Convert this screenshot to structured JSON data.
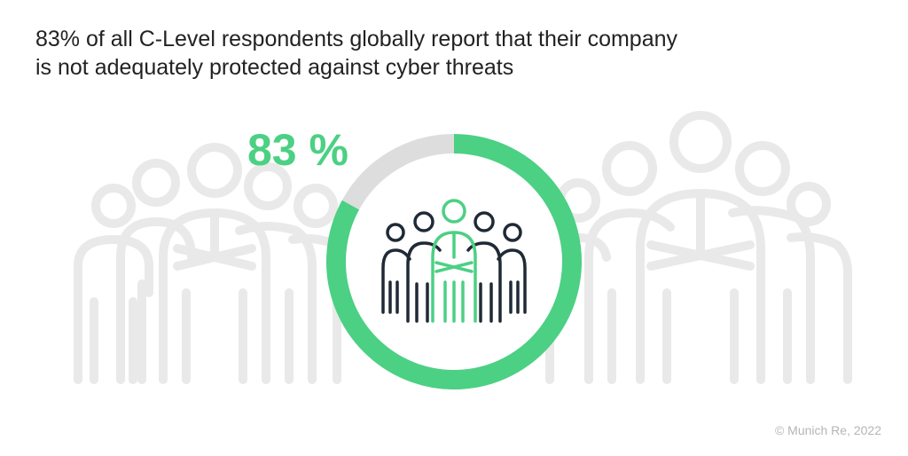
{
  "title_lines": [
    "83% of all C-Level respondents globally report that their company",
    "is not adequately protected against cyber threats"
  ],
  "chart_data": {
    "type": "pie",
    "variant": "donut",
    "values": [
      83,
      17
    ],
    "value_label": "83 %",
    "colors": [
      "#4cd084",
      "#dddddd"
    ]
  },
  "credit": "© Munich Re, 2022",
  "colors": {
    "accent": "#4cd084",
    "remainder": "#dddddd",
    "icon_dark": "#1f2a36",
    "background_figures": "#e9e9e9"
  },
  "icons": {
    "background": "people-group-outline-icon",
    "center": "executive-group-icon"
  }
}
